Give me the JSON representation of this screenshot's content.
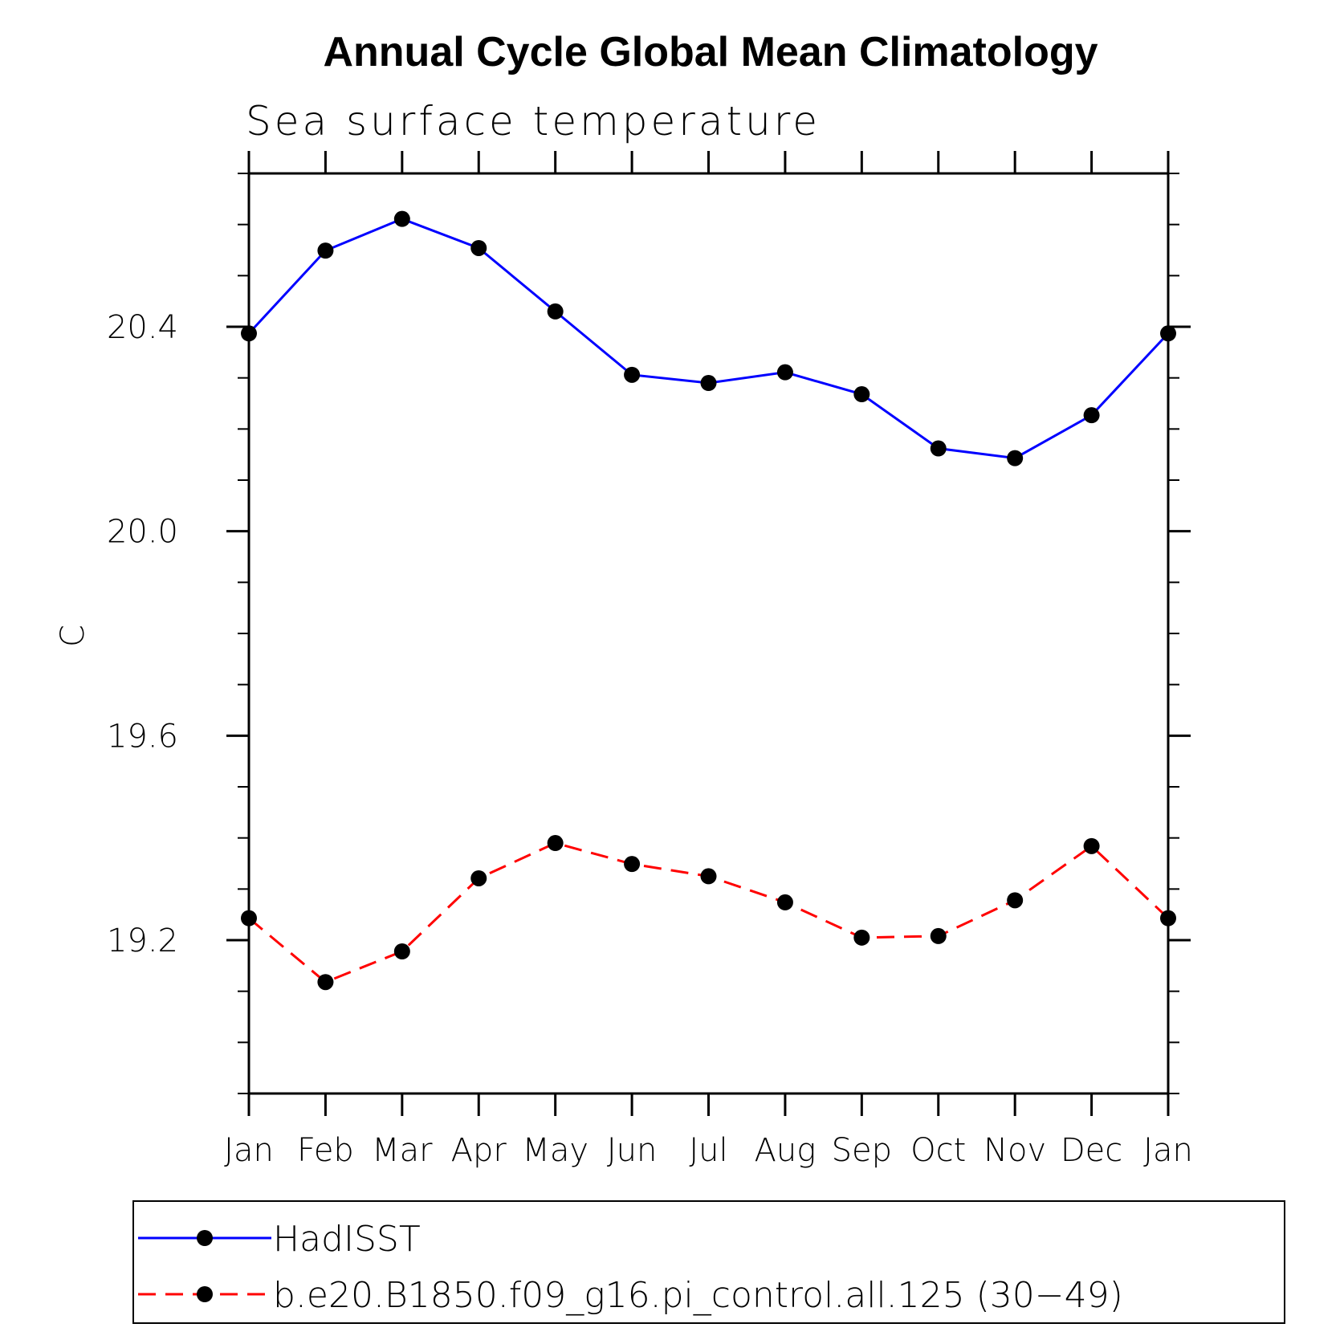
{
  "chart_data": {
    "type": "line",
    "title": "Annual Cycle Global Mean Climatology",
    "subtitle": "Sea surface temperature",
    "ylabel": "C",
    "xlabel": "",
    "categories": [
      "Jan",
      "Feb",
      "Mar",
      "Apr",
      "May",
      "Jun",
      "Jul",
      "Aug",
      "Sep",
      "Oct",
      "Nov",
      "Dec",
      "Jan"
    ],
    "ylim": [
      18.9,
      20.7
    ],
    "yticks": [
      19.2,
      19.6,
      20.0,
      20.4
    ],
    "ytick_labels": [
      "19.2",
      "19.6",
      "20.0",
      "20.4"
    ],
    "yminor_step": 0.1,
    "grid": false,
    "legend_position": "bottom",
    "series": [
      {
        "name": "HadISST",
        "color": "#0000ff",
        "line_style": "solid",
        "marker": "circle",
        "values": [
          20.387,
          20.549,
          20.611,
          20.554,
          20.43,
          20.306,
          20.29,
          20.311,
          20.268,
          20.162,
          20.143,
          20.227,
          20.387
        ]
      },
      {
        "name": "b.e20.B1850.f09_g16.pi_control.all.125 (30−49)",
        "color": "#ff0000",
        "line_style": "dashed",
        "marker": "circle",
        "values": [
          19.243,
          19.118,
          19.178,
          19.321,
          19.39,
          19.349,
          19.325,
          19.274,
          19.205,
          19.208,
          19.278,
          19.384,
          19.243
        ]
      }
    ]
  }
}
